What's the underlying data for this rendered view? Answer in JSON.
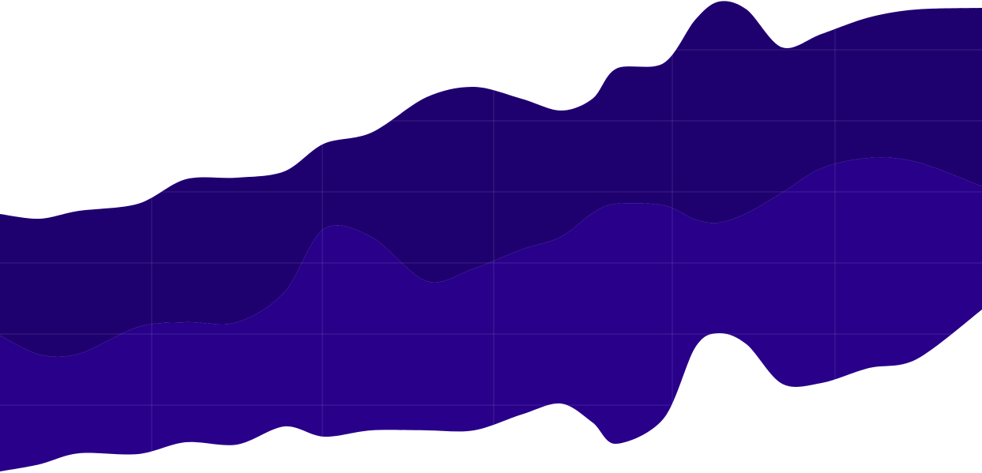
{
  "chart_data": {
    "type": "area",
    "stacked": true,
    "title": "",
    "xlabel": "",
    "ylabel": "",
    "grid": true,
    "legend": "none",
    "colors": {
      "background": "#ffffff",
      "upper_band": "#1f006f",
      "lower_band": "#28008a",
      "grid": "#ffffff"
    },
    "x_domain": [
      0,
      1243
    ],
    "y_domain": [
      0,
      599
    ],
    "x_grid": [
      192,
      408,
      625,
      851,
      1057
    ],
    "y_grid": [
      63,
      153,
      243,
      333,
      423,
      513
    ],
    "series": [
      {
        "key": "upper",
        "x": [
          0,
          50,
          100,
          175,
          235,
          300,
          360,
          410,
          470,
          540,
          600,
          660,
          710,
          750,
          780,
          840,
          880,
          910,
          945,
          990,
          1040,
          1100,
          1160,
          1243
        ],
        "top": [
          271,
          277,
          267,
          258,
          227,
          225,
          217,
          182,
          168,
          123,
          110,
          125,
          140,
          125,
          87,
          80,
          25,
          2,
          12,
          60,
          43,
          22,
          12,
          10
        ],
        "bottom": [
          425,
          449,
          448,
          414,
          408,
          408,
          370,
          290,
          300,
          356,
          340,
          316,
          300,
          270,
          258,
          260,
          278,
          282,
          270,
          244,
          213,
          200,
          205,
          236
        ]
      },
      {
        "key": "lower",
        "x": [
          0,
          50,
          100,
          175,
          235,
          300,
          360,
          410,
          470,
          540,
          600,
          660,
          710,
          750,
          780,
          840,
          880,
          910,
          945,
          990,
          1040,
          1100,
          1160,
          1243
        ],
        "top": [
          425,
          449,
          448,
          414,
          408,
          408,
          370,
          290,
          300,
          356,
          340,
          316,
          300,
          270,
          258,
          260,
          278,
          282,
          270,
          244,
          213,
          200,
          205,
          236
        ],
        "bottom": [
          597,
          588,
          574,
          575,
          560,
          563,
          540,
          553,
          545,
          545,
          545,
          525,
          511,
          535,
          562,
          530,
          440,
          422,
          436,
          486,
          485,
          466,
          455,
          392
        ]
      }
    ]
  }
}
